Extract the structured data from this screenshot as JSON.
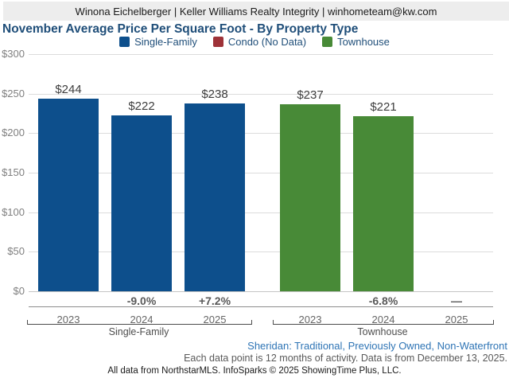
{
  "header": {
    "contact_line": "Winona Eichelberger | Keller Williams Realty Integrity | winhometeam@kw.com"
  },
  "title": "November Average Price Per Square Foot - By Property Type",
  "legend": [
    {
      "label": "Single-Family",
      "color": "#0d4f8c",
      "swatch_icon": "blue-square-icon"
    },
    {
      "label": "Condo (No Data)",
      "color": "#9e3238",
      "swatch_icon": "red-square-icon"
    },
    {
      "label": "Townhouse",
      "color": "#488a37",
      "swatch_icon": "green-square-icon"
    }
  ],
  "chart_data": {
    "type": "bar",
    "title": "November Average Price Per Square Foot - By Property Type",
    "xlabel": "",
    "ylabel": "",
    "ylim": [
      0,
      300
    ],
    "ytick_labels": [
      "$300",
      "$250",
      "$200",
      "$150",
      "$100",
      "$50",
      "$0"
    ],
    "ytick_values": [
      300,
      250,
      200,
      150,
      100,
      50,
      0
    ],
    "grid": true,
    "legend_position": "top",
    "categories": [
      "2023",
      "2024",
      "2025"
    ],
    "groups": [
      {
        "name": "Single-Family",
        "color": "#0d4f8c",
        "bars": [
          {
            "year": "2023",
            "value": 244,
            "label": "$244",
            "pct_change": ""
          },
          {
            "year": "2024",
            "value": 222,
            "label": "$222",
            "pct_change": "-9.0%"
          },
          {
            "year": "2025",
            "value": 238,
            "label": "$238",
            "pct_change": "+7.2%"
          }
        ]
      },
      {
        "name": "Townhouse",
        "color": "#488a37",
        "bars": [
          {
            "year": "2023",
            "value": 237,
            "label": "$237",
            "pct_change": ""
          },
          {
            "year": "2024",
            "value": 221,
            "label": "$221",
            "pct_change": "-6.8%"
          },
          {
            "year": "2025",
            "value": null,
            "label": "",
            "pct_change": "—"
          }
        ]
      },
      {
        "name": "Condo",
        "color": "#9e3238",
        "bars": []
      }
    ]
  },
  "footer": {
    "filter_line": "Sheridan: Traditional, Previously Owned, Non-Waterfront",
    "data_note": "Each data point is 12 months of activity. Data is from December 13, 2025.",
    "attribution": "All data from NorthstarMLS. InfoSparks © 2025 ShowingTime Plus, LLC."
  }
}
